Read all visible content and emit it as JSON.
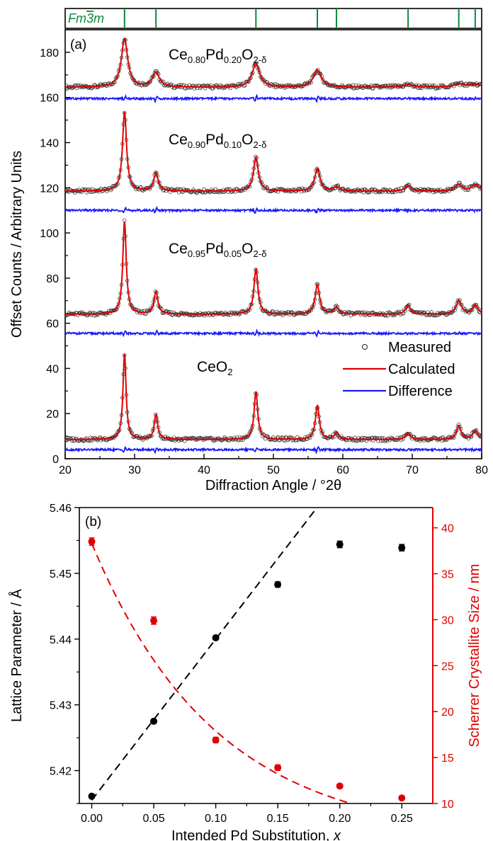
{
  "chart_data": [
    {
      "panel": "(a)",
      "type": "line",
      "xlabel": "Diffraction Angle / °2θ",
      "ylabel": "Offset Counts / Arbitrary Units",
      "xlim": [
        20,
        80
      ],
      "ylim": [
        0,
        190
      ],
      "xticks": [
        "20",
        "30",
        "40",
        "50",
        "60",
        "70",
        "80"
      ],
      "yticks": [
        "0",
        "20",
        "40",
        "60",
        "80",
        "100",
        "120",
        "140",
        "160",
        "180"
      ],
      "space_group": {
        "label_parts": [
          "Fm",
          "3",
          "m"
        ],
        "overline_part": 1,
        "reflections_2theta": [
          28.55,
          33.08,
          47.48,
          56.33,
          59.08,
          69.4,
          76.7,
          79.07
        ]
      },
      "legend": {
        "position": "bottom-right",
        "measured_label": "Measured",
        "calculated_label": "Calculated",
        "difference_label": "Difference"
      },
      "series_style": {
        "measured": "#222222",
        "calculated": "#e00000",
        "difference": "#1a1aff"
      },
      "peaks_2theta": [
        28.55,
        33.08,
        47.48,
        56.33,
        59.08,
        69.4,
        76.7,
        79.07
      ],
      "samples": [
        {
          "label_parts": [
            "Ce",
            "0.80",
            "Pd",
            "0.20",
            "O",
            "2-δ"
          ],
          "baseline": 164.5,
          "heights": [
            21.5,
            6.5,
            10.5,
            7.5,
            0,
            1.2,
            1.5,
            1.3
          ],
          "widths": [
            0.55,
            0.6,
            0.65,
            0.7,
            0.7,
            0.8,
            0.9,
            0.9
          ],
          "difference_offset": 159.5
        },
        {
          "label_parts": [
            "Ce",
            "0.90",
            "Pd",
            "0.10",
            "O",
            "2-δ"
          ],
          "baseline": 118.5,
          "heights": [
            35,
            8,
            15,
            10,
            2,
            2.5,
            3,
            3
          ],
          "widths": [
            0.35,
            0.38,
            0.42,
            0.45,
            0.45,
            0.5,
            0.55,
            0.55
          ],
          "difference_offset": 110
        },
        {
          "label_parts": [
            "Ce",
            "0.95",
            "Pd",
            "0.05",
            "O",
            "2-δ"
          ],
          "baseline": 64,
          "heights": [
            41,
            10,
            20,
            13,
            3,
            4,
            6,
            4
          ],
          "widths": [
            0.3,
            0.33,
            0.35,
            0.38,
            0.38,
            0.42,
            0.45,
            0.45
          ],
          "difference_offset": 55.5
        },
        {
          "label_parts": [
            "CeO",
            "2"
          ],
          "baseline": 8.5,
          "heights": [
            38,
            11,
            21,
            15,
            3,
            3,
            6,
            4
          ],
          "widths": [
            0.27,
            0.3,
            0.32,
            0.34,
            0.34,
            0.38,
            0.4,
            0.4
          ],
          "difference_offset": 4
        }
      ]
    },
    {
      "panel": "(b)",
      "type": "scatter",
      "xlabel_prefix": "Intended Pd Substitution, ",
      "xlabel_var": "x",
      "ylabel_left": "Lattice Parameter / Å",
      "ylabel_right": "Scherrer Crystallite Size / nm",
      "xlim": [
        -0.01,
        0.275
      ],
      "ylim_left": [
        5.415,
        5.46
      ],
      "ylim_right": [
        10,
        42.2
      ],
      "xticks": [
        "0.00",
        "0.05",
        "0.10",
        "0.15",
        "0.20",
        "0.25"
      ],
      "yticks_left": [
        "5.42",
        "5.43",
        "5.44",
        "5.45",
        "5.46"
      ],
      "yticks_right": [
        "10",
        "15",
        "20",
        "25",
        "30",
        "35",
        "40"
      ],
      "left_axis_color": "#000000",
      "right_axis_color": "#e00000",
      "series": [
        {
          "axis": "left",
          "color": "#000000",
          "x": [
            0.0,
            0.05,
            0.1,
            0.15,
            0.2,
            0.25
          ],
          "y": [
            5.4161,
            5.4275,
            5.4402,
            5.4483,
            5.4544,
            5.4539
          ],
          "err": [
            0.0003,
            0.0003,
            0.0003,
            0.0004,
            0.0005,
            0.0005
          ]
        },
        {
          "axis": "right",
          "color": "#e00000",
          "x": [
            0.0,
            0.05,
            0.1,
            0.15,
            0.2,
            0.25
          ],
          "y": [
            38.5,
            29.9,
            16.9,
            13.9,
            11.9,
            10.6
          ],
          "err": [
            0.4,
            0.4,
            0.3,
            0.3,
            0.2,
            0.2
          ]
        }
      ],
      "fits": [
        {
          "axis": "left",
          "color": "#000000",
          "kind": "linear",
          "slope": 0.245,
          "intercept": 5.4155,
          "x_range": [
            0.0,
            0.28
          ]
        },
        {
          "axis": "right",
          "color": "#e00000",
          "kind": "exponential",
          "offset": 6.0,
          "amplitude": 32.3,
          "decay": 0.1,
          "x_range": [
            0.0,
            0.25
          ]
        }
      ]
    }
  ]
}
